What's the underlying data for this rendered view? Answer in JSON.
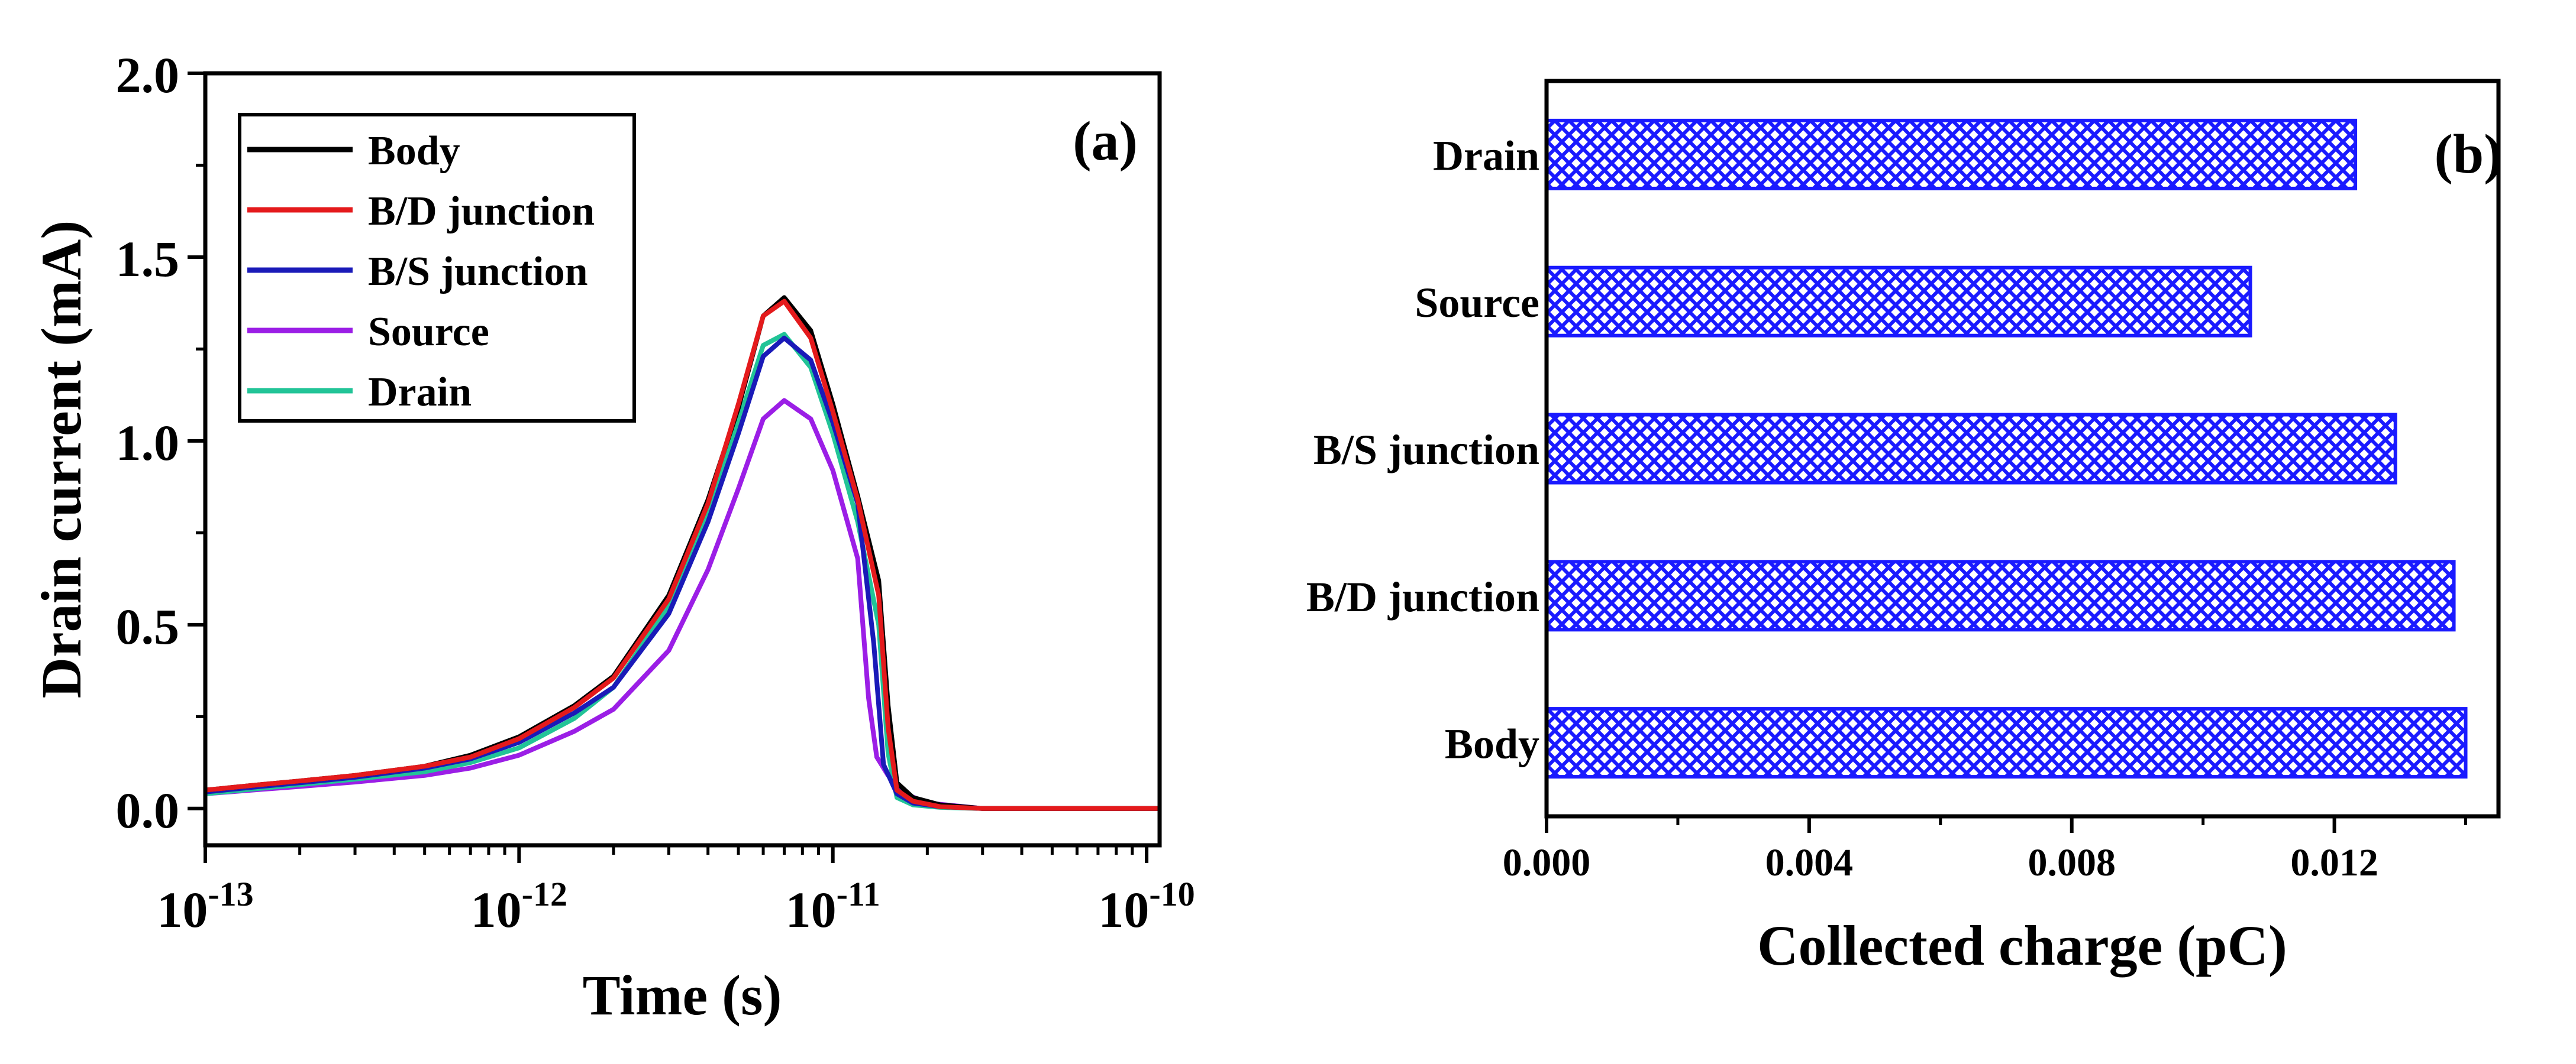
{
  "chart_data": [
    {
      "panel_label": "(a)",
      "type": "line",
      "xscale": "log",
      "xlabel": "Time (s)",
      "ylabel": "Drain current (mA)",
      "xlim": [
        1e-13,
        1.1e-10
      ],
      "ylim": [
        -0.1,
        2.0
      ],
      "x_ticks": [
        {
          "value": 1e-13,
          "base": "10",
          "exp": "-13"
        },
        {
          "value": 1e-12,
          "base": "10",
          "exp": "-12"
        },
        {
          "value": 1e-11,
          "base": "10",
          "exp": "-11"
        },
        {
          "value": 1e-10,
          "base": "10",
          "exp": "-10"
        }
      ],
      "y_ticks": [
        {
          "value": 0.0,
          "label": "0.0"
        },
        {
          "value": 0.5,
          "label": "0.5"
        },
        {
          "value": 1.0,
          "label": "1.0"
        },
        {
          "value": 1.5,
          "label": "1.5"
        },
        {
          "value": 2.0,
          "label": "2.0"
        }
      ],
      "legend_position": "top-left",
      "series": [
        {
          "name": "Body",
          "color": "#000000",
          "points": [
            [
              1e-13,
              0.05
            ],
            [
              1.5e-13,
              0.065
            ],
            [
              2e-13,
              0.075
            ],
            [
              3e-13,
              0.09
            ],
            [
              5e-13,
              0.115
            ],
            [
              7e-13,
              0.145
            ],
            [
              1e-12,
              0.195
            ],
            [
              1.5e-12,
              0.28
            ],
            [
              2e-12,
              0.36
            ],
            [
              3e-12,
              0.58
            ],
            [
              4e-12,
              0.84
            ],
            [
              5e-12,
              1.09
            ],
            [
              6e-12,
              1.34
            ],
            [
              7e-12,
              1.39
            ],
            [
              8.5e-12,
              1.3
            ],
            [
              1e-11,
              1.1
            ],
            [
              1.2e-11,
              0.85
            ],
            [
              1.4e-11,
              0.62
            ],
            [
              1.5e-11,
              0.28
            ],
            [
              1.6e-11,
              0.07
            ],
            [
              1.8e-11,
              0.03
            ],
            [
              2.2e-11,
              0.01
            ],
            [
              3e-11,
              0.0
            ],
            [
              1.1e-10,
              0.0
            ]
          ]
        },
        {
          "name": "B/D junction",
          "color": "#e41a1c",
          "points": [
            [
              1e-13,
              0.05
            ],
            [
              1.5e-13,
              0.065
            ],
            [
              2e-13,
              0.075
            ],
            [
              3e-13,
              0.09
            ],
            [
              5e-13,
              0.115
            ],
            [
              7e-13,
              0.14
            ],
            [
              1e-12,
              0.19
            ],
            [
              1.5e-12,
              0.275
            ],
            [
              2e-12,
              0.355
            ],
            [
              3e-12,
              0.57
            ],
            [
              4e-12,
              0.83
            ],
            [
              5e-12,
              1.1
            ],
            [
              6e-12,
              1.34
            ],
            [
              7e-12,
              1.38
            ],
            [
              8.5e-12,
              1.28
            ],
            [
              1e-11,
              1.08
            ],
            [
              1.2e-11,
              0.84
            ],
            [
              1.4e-11,
              0.58
            ],
            [
              1.5e-11,
              0.22
            ],
            [
              1.6e-11,
              0.05
            ],
            [
              1.8e-11,
              0.02
            ],
            [
              2.2e-11,
              0.005
            ],
            [
              3e-11,
              0.0
            ],
            [
              1.1e-10,
              0.0
            ]
          ]
        },
        {
          "name": "B/S junction",
          "color": "#1a1ab8",
          "points": [
            [
              1e-13,
              0.045
            ],
            [
              1.5e-13,
              0.06
            ],
            [
              2e-13,
              0.07
            ],
            [
              3e-13,
              0.085
            ],
            [
              5e-13,
              0.11
            ],
            [
              7e-13,
              0.135
            ],
            [
              1e-12,
              0.18
            ],
            [
              1.5e-12,
              0.26
            ],
            [
              2e-12,
              0.33
            ],
            [
              3e-12,
              0.53
            ],
            [
              4e-12,
              0.78
            ],
            [
              5e-12,
              1.02
            ],
            [
              6e-12,
              1.23
            ],
            [
              7e-12,
              1.28
            ],
            [
              8.5e-12,
              1.22
            ],
            [
              1e-11,
              1.05
            ],
            [
              1.2e-11,
              0.83
            ],
            [
              1.35e-11,
              0.45
            ],
            [
              1.45e-11,
              0.12
            ],
            [
              1.6e-11,
              0.04
            ],
            [
              1.8e-11,
              0.015
            ],
            [
              2.2e-11,
              0.005
            ],
            [
              3e-11,
              0.0
            ],
            [
              1.1e-10,
              0.0
            ]
          ]
        },
        {
          "name": "Source",
          "color": "#9b1ee6",
          "points": [
            [
              1e-13,
              0.04
            ],
            [
              1.5e-13,
              0.052
            ],
            [
              2e-13,
              0.06
            ],
            [
              3e-13,
              0.072
            ],
            [
              5e-13,
              0.09
            ],
            [
              7e-13,
              0.11
            ],
            [
              1e-12,
              0.145
            ],
            [
              1.5e-12,
              0.21
            ],
            [
              2e-12,
              0.27
            ],
            [
              3e-12,
              0.43
            ],
            [
              4e-12,
              0.65
            ],
            [
              5e-12,
              0.87
            ],
            [
              6e-12,
              1.06
            ],
            [
              7e-12,
              1.11
            ],
            [
              8.5e-12,
              1.06
            ],
            [
              1e-11,
              0.92
            ],
            [
              1.2e-11,
              0.68
            ],
            [
              1.3e-11,
              0.3
            ],
            [
              1.38e-11,
              0.14
            ],
            [
              1.5e-11,
              0.09
            ],
            [
              1.7e-11,
              0.04
            ],
            [
              2e-11,
              0.015
            ],
            [
              3e-11,
              0.0
            ],
            [
              1.1e-10,
              0.0
            ]
          ]
        },
        {
          "name": "Drain",
          "color": "#22c497",
          "points": [
            [
              1e-13,
              0.04
            ],
            [
              1.5e-13,
              0.055
            ],
            [
              2e-13,
              0.065
            ],
            [
              3e-13,
              0.08
            ],
            [
              5e-13,
              0.1
            ],
            [
              7e-13,
              0.125
            ],
            [
              1e-12,
              0.165
            ],
            [
              1.5e-12,
              0.245
            ],
            [
              2e-12,
              0.33
            ],
            [
              3e-12,
              0.55
            ],
            [
              4e-12,
              0.8
            ],
            [
              5e-12,
              1.05
            ],
            [
              6e-12,
              1.26
            ],
            [
              7e-12,
              1.29
            ],
            [
              8.5e-12,
              1.2
            ],
            [
              1e-11,
              1.02
            ],
            [
              1.2e-11,
              0.78
            ],
            [
              1.4e-11,
              0.5
            ],
            [
              1.5e-11,
              0.15
            ],
            [
              1.6e-11,
              0.03
            ],
            [
              1.8e-11,
              0.01
            ],
            [
              2.2e-11,
              0.003
            ],
            [
              3e-11,
              0.0
            ],
            [
              1.1e-10,
              0.0
            ]
          ]
        }
      ]
    },
    {
      "panel_label": "(b)",
      "type": "bar",
      "orientation": "horizontal",
      "fill_pattern": "crosshatch",
      "bar_color": "#1a1aff",
      "xlabel": "Collected charge (pC)",
      "ylabel": "",
      "xlim": [
        0,
        0.0145
      ],
      "x_ticks": [
        {
          "value": 0.0,
          "label": "0.000"
        },
        {
          "value": 0.004,
          "label": "0.004"
        },
        {
          "value": 0.008,
          "label": "0.008"
        },
        {
          "value": 0.012,
          "label": "0.012"
        }
      ],
      "categories": [
        "Body",
        "B/D junction",
        "B/S junction",
        "Source",
        "Drain"
      ],
      "values": [
        0.014,
        0.01382,
        0.01293,
        0.01072,
        0.01232
      ]
    }
  ]
}
